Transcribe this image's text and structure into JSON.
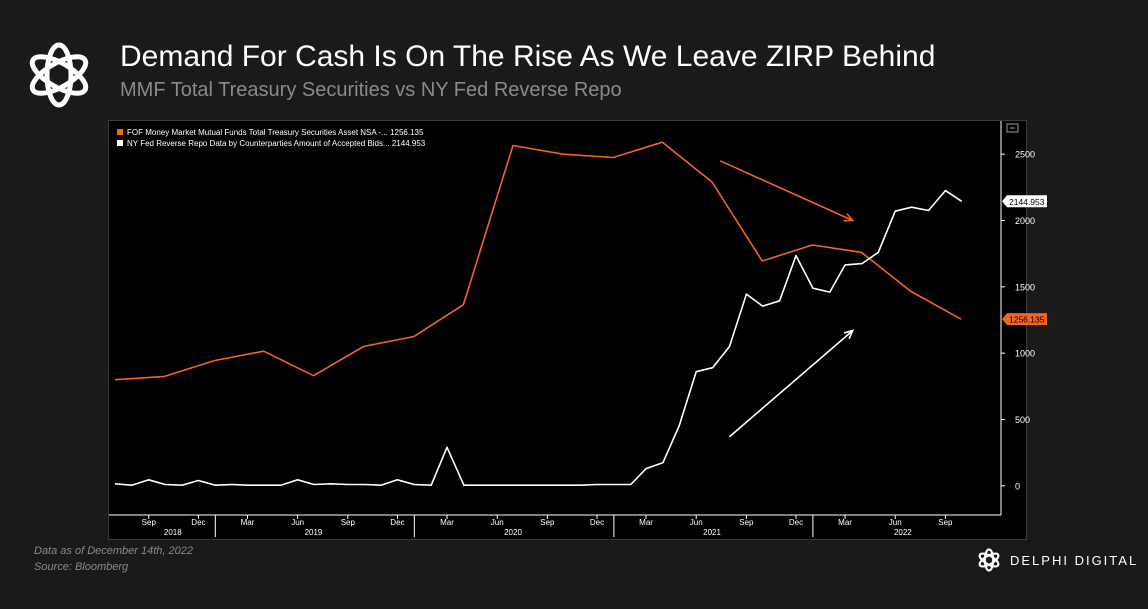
{
  "header": {
    "title": "Demand For Cash Is On The Rise As We Leave ZIRP Behind",
    "subtitle": "MMF Total Treasury Securities vs NY Fed Reverse Repo",
    "logo_icon": "delphi-knot-icon"
  },
  "footer": {
    "data_as_of": "Data as of December 14th, 2022",
    "source": "Source: Bloomberg"
  },
  "brand": {
    "name": "DELPHI DIGITAL",
    "logo_icon": "delphi-knot-icon"
  },
  "chart_data": {
    "type": "line",
    "title": "",
    "xlabel": "",
    "ylabel": "",
    "ylim": [
      -220,
      2750
    ],
    "xlim": [
      "2018-07-01",
      "2022-12-12"
    ],
    "yticks": [
      0,
      500,
      1000,
      1500,
      2000,
      2500
    ],
    "grid": false,
    "legend": "top-left",
    "x_tick_labels": [
      "Sep",
      "Dec",
      "Mar",
      "Jun",
      "Sep",
      "Dec",
      "Mar",
      "Jun",
      "Sep",
      "Dec",
      "Mar",
      "Jun",
      "Sep",
      "Dec",
      "Mar",
      "Jun",
      "Sep"
    ],
    "x_tick_dates": [
      "2018-09-01",
      "2018-12-01",
      "2019-03-01",
      "2019-06-01",
      "2019-09-01",
      "2019-12-01",
      "2020-03-01",
      "2020-06-01",
      "2020-09-01",
      "2020-12-01",
      "2021-03-01",
      "2021-06-01",
      "2021-09-01",
      "2021-12-01",
      "2022-03-01",
      "2022-06-01",
      "2022-09-01"
    ],
    "year_labels": [
      {
        "label": "2018",
        "center": "2018-10-15"
      },
      {
        "label": "2019",
        "center": "2019-06-30"
      },
      {
        "label": "2020",
        "center": "2020-06-30"
      },
      {
        "label": "2021",
        "center": "2021-06-30"
      },
      {
        "label": "2022",
        "center": "2022-06-15"
      }
    ],
    "year_dividers": [
      "2019-01-01",
      "2020-01-01",
      "2021-01-01",
      "2022-01-01"
    ],
    "series": [
      {
        "name": "FOF Money Market Mutual Funds Total Treasury Securities Asset NSA -...",
        "legend_value": "1256.135",
        "last_value_label": "1256.135",
        "color": "#f26522",
        "points": [
          [
            "2018-07-01",
            800
          ],
          [
            "2018-09-30",
            825
          ],
          [
            "2018-12-31",
            945
          ],
          [
            "2019-03-31",
            1015
          ],
          [
            "2019-06-30",
            830
          ],
          [
            "2019-09-30",
            1050
          ],
          [
            "2019-12-31",
            1125
          ],
          [
            "2020-03-31",
            1365
          ],
          [
            "2020-06-30",
            2565
          ],
          [
            "2020-09-30",
            2500
          ],
          [
            "2020-12-31",
            2475
          ],
          [
            "2021-03-31",
            2590
          ],
          [
            "2021-06-30",
            2290
          ],
          [
            "2021-09-30",
            1695
          ],
          [
            "2021-12-31",
            1815
          ],
          [
            "2022-03-31",
            1760
          ],
          [
            "2022-06-30",
            1465
          ],
          [
            "2022-09-30",
            1256.135
          ]
        ]
      },
      {
        "name": "NY Fed Reverse Repo Data by Counterparties Amount of Accepted Bids...",
        "legend_value": "2144.953",
        "last_value_label": "2144.953",
        "color": "#ffffff",
        "points": [
          [
            "2018-07-01",
            15
          ],
          [
            "2018-08-01",
            5
          ],
          [
            "2018-09-01",
            45
          ],
          [
            "2018-10-01",
            10
          ],
          [
            "2018-11-01",
            5
          ],
          [
            "2018-12-01",
            40
          ],
          [
            "2019-01-01",
            5
          ],
          [
            "2019-02-01",
            10
          ],
          [
            "2019-03-01",
            5
          ],
          [
            "2019-04-01",
            5
          ],
          [
            "2019-05-01",
            5
          ],
          [
            "2019-06-01",
            45
          ],
          [
            "2019-07-01",
            10
          ],
          [
            "2019-08-01",
            15
          ],
          [
            "2019-09-01",
            10
          ],
          [
            "2019-10-01",
            10
          ],
          [
            "2019-11-01",
            5
          ],
          [
            "2019-12-01",
            45
          ],
          [
            "2020-01-01",
            10
          ],
          [
            "2020-02-01",
            5
          ],
          [
            "2020-03-01",
            290
          ],
          [
            "2020-04-01",
            5
          ],
          [
            "2020-05-01",
            5
          ],
          [
            "2020-06-01",
            5
          ],
          [
            "2020-07-01",
            5
          ],
          [
            "2020-08-01",
            5
          ],
          [
            "2020-09-01",
            5
          ],
          [
            "2020-10-01",
            5
          ],
          [
            "2020-11-01",
            5
          ],
          [
            "2020-12-01",
            10
          ],
          [
            "2021-01-01",
            10
          ],
          [
            "2021-02-01",
            10
          ],
          [
            "2021-03-01",
            130
          ],
          [
            "2021-04-01",
            175
          ],
          [
            "2021-05-01",
            455
          ],
          [
            "2021-06-01",
            860
          ],
          [
            "2021-07-01",
            890
          ],
          [
            "2021-08-01",
            1050
          ],
          [
            "2021-09-01",
            1445
          ],
          [
            "2021-10-01",
            1355
          ],
          [
            "2021-11-01",
            1395
          ],
          [
            "2021-12-01",
            1735
          ],
          [
            "2022-01-01",
            1490
          ],
          [
            "2022-02-01",
            1460
          ],
          [
            "2022-03-01",
            1665
          ],
          [
            "2022-04-01",
            1675
          ],
          [
            "2022-05-01",
            1760
          ],
          [
            "2022-06-01",
            2070
          ],
          [
            "2022-07-01",
            2100
          ],
          [
            "2022-08-01",
            2075
          ],
          [
            "2022-09-01",
            2225
          ],
          [
            "2022-10-01",
            2144.953
          ]
        ]
      }
    ],
    "annotations": [
      {
        "type": "arrow",
        "color": "#f26522",
        "from": [
          "2021-07-15",
          2450
        ],
        "to": [
          "2022-03-15",
          2000
        ]
      },
      {
        "type": "arrow",
        "color": "#ffffff",
        "from": [
          "2021-08-01",
          370
        ],
        "to": [
          "2022-03-15",
          1170
        ]
      }
    ],
    "toolbar_icon": "chart-options-icon"
  }
}
